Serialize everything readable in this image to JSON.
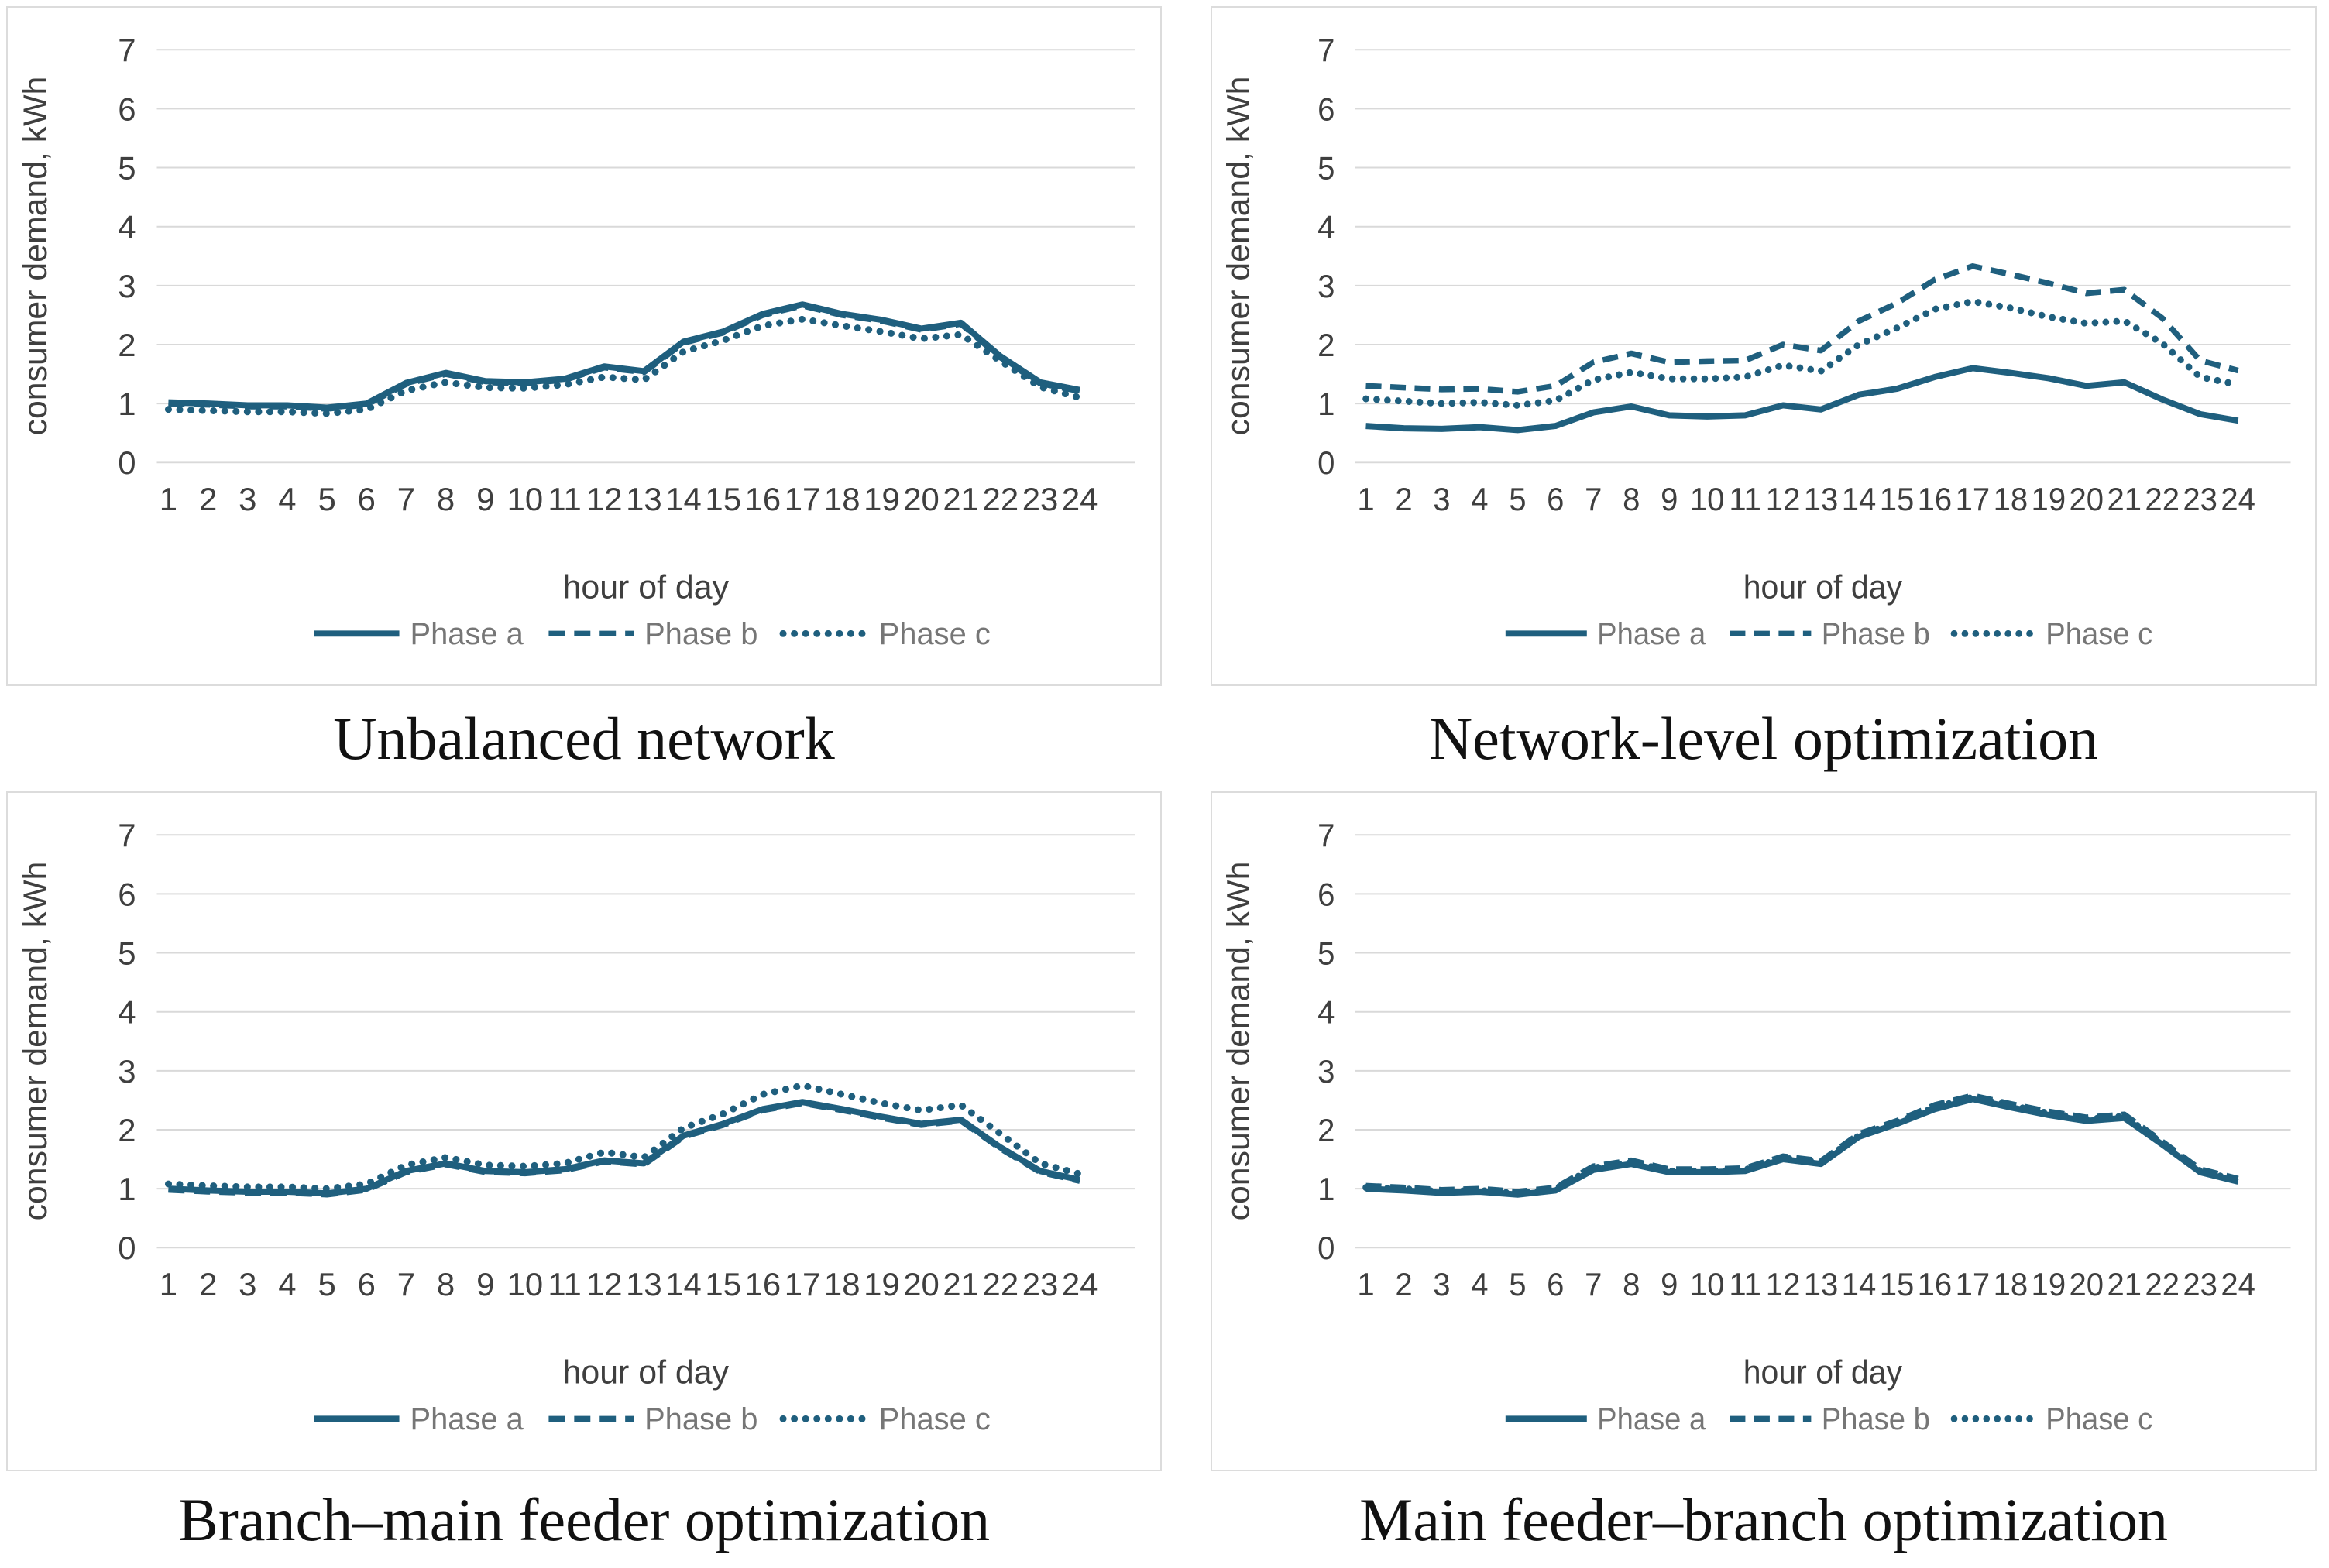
{
  "theme": {
    "line_color": "#1f5f7e",
    "grid_color": "#d9d9d9",
    "panel_border_color": "#dcdcdc",
    "axis_text_color": "#3f3f3f",
    "legend_text_color": "#767676",
    "title_color": "#111111",
    "background": "#ffffff"
  },
  "chart_data": [
    {
      "type": "line",
      "title": "Unbalanced network",
      "xlabel": "hour of day",
      "ylabel": "consumer demand, kWh",
      "x": [
        1,
        2,
        3,
        4,
        5,
        6,
        7,
        8,
        9,
        10,
        11,
        12,
        13,
        14,
        15,
        16,
        17,
        18,
        19,
        20,
        21,
        22,
        23,
        24
      ],
      "ylim": [
        0,
        7
      ],
      "yticks": [
        0,
        1,
        2,
        3,
        4,
        5,
        6,
        7
      ],
      "grid": "horizontal",
      "legend_position": "bottom",
      "series": [
        {
          "name": "Phase a",
          "style": "solid",
          "values": [
            1.02,
            1.0,
            0.97,
            0.97,
            0.93,
            1.0,
            1.35,
            1.52,
            1.38,
            1.36,
            1.42,
            1.63,
            1.55,
            2.05,
            2.22,
            2.52,
            2.68,
            2.52,
            2.42,
            2.27,
            2.37,
            1.8,
            1.36,
            1.23
          ]
        },
        {
          "name": "Phase b",
          "style": "dashed",
          "values": [
            1.0,
            0.98,
            0.95,
            0.95,
            0.91,
            0.98,
            1.33,
            1.5,
            1.36,
            1.34,
            1.4,
            1.61,
            1.53,
            2.03,
            2.2,
            2.5,
            2.66,
            2.5,
            2.4,
            2.25,
            2.35,
            1.78,
            1.34,
            1.21
          ]
        },
        {
          "name": "Phase c",
          "style": "dotted",
          "values": [
            0.9,
            0.88,
            0.86,
            0.86,
            0.83,
            0.9,
            1.22,
            1.36,
            1.27,
            1.26,
            1.32,
            1.45,
            1.4,
            1.88,
            2.07,
            2.32,
            2.43,
            2.32,
            2.22,
            2.1,
            2.17,
            1.72,
            1.28,
            1.1
          ]
        }
      ]
    },
    {
      "type": "line",
      "title": "Network-level optimization",
      "xlabel": "hour of day",
      "ylabel": "consumer demand, kWh",
      "x": [
        1,
        2,
        3,
        4,
        5,
        6,
        7,
        8,
        9,
        10,
        11,
        12,
        13,
        14,
        15,
        16,
        17,
        18,
        19,
        20,
        21,
        22,
        23,
        24
      ],
      "ylim": [
        0,
        7
      ],
      "yticks": [
        0,
        1,
        2,
        3,
        4,
        5,
        6,
        7
      ],
      "grid": "horizontal",
      "legend_position": "bottom",
      "series": [
        {
          "name": "Phase a",
          "style": "solid",
          "values": [
            0.62,
            0.58,
            0.57,
            0.6,
            0.55,
            0.62,
            0.85,
            0.95,
            0.8,
            0.78,
            0.8,
            0.97,
            0.9,
            1.15,
            1.25,
            1.45,
            1.6,
            1.52,
            1.43,
            1.3,
            1.36,
            1.07,
            0.82,
            0.71
          ]
        },
        {
          "name": "Phase b",
          "style": "dashed",
          "values": [
            1.3,
            1.27,
            1.24,
            1.25,
            1.2,
            1.3,
            1.7,
            1.85,
            1.7,
            1.72,
            1.73,
            2.0,
            1.9,
            2.4,
            2.7,
            3.1,
            3.33,
            3.19,
            3.04,
            2.87,
            2.93,
            2.45,
            1.73,
            1.56
          ]
        },
        {
          "name": "Phase c",
          "style": "dotted",
          "values": [
            1.08,
            1.04,
            1.0,
            1.02,
            0.97,
            1.05,
            1.4,
            1.53,
            1.42,
            1.42,
            1.45,
            1.65,
            1.55,
            2.0,
            2.28,
            2.6,
            2.73,
            2.62,
            2.47,
            2.36,
            2.4,
            2.02,
            1.45,
            1.32
          ]
        }
      ]
    },
    {
      "type": "line",
      "title": "Branch–main feeder optimization",
      "xlabel": "hour of day",
      "ylabel": "consumer demand, kWh",
      "x": [
        1,
        2,
        3,
        4,
        5,
        6,
        7,
        8,
        9,
        10,
        11,
        12,
        13,
        14,
        15,
        16,
        17,
        18,
        19,
        20,
        21,
        22,
        23,
        24
      ],
      "ylim": [
        0,
        7
      ],
      "yticks": [
        0,
        1,
        2,
        3,
        4,
        5,
        6,
        7
      ],
      "grid": "horizontal",
      "legend_position": "bottom",
      "series": [
        {
          "name": "Phase a",
          "style": "solid",
          "values": [
            1.0,
            0.97,
            0.95,
            0.95,
            0.92,
            1.0,
            1.3,
            1.43,
            1.3,
            1.28,
            1.33,
            1.48,
            1.43,
            1.9,
            2.1,
            2.35,
            2.47,
            2.35,
            2.22,
            2.1,
            2.17,
            1.7,
            1.3,
            1.15
          ]
        },
        {
          "name": "Phase b",
          "style": "dashed",
          "values": [
            0.98,
            0.95,
            0.93,
            0.93,
            0.9,
            0.98,
            1.28,
            1.41,
            1.28,
            1.26,
            1.31,
            1.46,
            1.41,
            1.88,
            2.08,
            2.33,
            2.45,
            2.33,
            2.2,
            2.08,
            2.15,
            1.68,
            1.28,
            1.13
          ]
        },
        {
          "name": "Phase c",
          "style": "dotted",
          "values": [
            1.08,
            1.05,
            1.03,
            1.03,
            1.0,
            1.08,
            1.4,
            1.53,
            1.4,
            1.38,
            1.43,
            1.62,
            1.53,
            2.03,
            2.27,
            2.6,
            2.75,
            2.6,
            2.45,
            2.33,
            2.42,
            1.93,
            1.43,
            1.25
          ]
        }
      ]
    },
    {
      "type": "line",
      "title": "Main feeder–branch optimization",
      "xlabel": "hour of day",
      "ylabel": "consumer demand, kWh",
      "x": [
        1,
        2,
        3,
        4,
        5,
        6,
        7,
        8,
        9,
        10,
        11,
        12,
        13,
        14,
        15,
        16,
        17,
        18,
        19,
        20,
        21,
        22,
        23,
        24
      ],
      "ylim": [
        0,
        7
      ],
      "yticks": [
        0,
        1,
        2,
        3,
        4,
        5,
        6,
        7
      ],
      "grid": "horizontal",
      "legend_position": "bottom",
      "series": [
        {
          "name": "Phase a",
          "style": "solid",
          "values": [
            1.0,
            0.97,
            0.93,
            0.95,
            0.9,
            0.97,
            1.32,
            1.42,
            1.28,
            1.28,
            1.3,
            1.5,
            1.42,
            1.88,
            2.1,
            2.35,
            2.52,
            2.38,
            2.25,
            2.15,
            2.2,
            1.75,
            1.28,
            1.12
          ]
        },
        {
          "name": "Phase b",
          "style": "dashed",
          "values": [
            1.05,
            1.02,
            0.98,
            1.0,
            0.95,
            1.02,
            1.38,
            1.48,
            1.33,
            1.33,
            1.35,
            1.55,
            1.47,
            1.93,
            2.15,
            2.42,
            2.58,
            2.44,
            2.31,
            2.21,
            2.26,
            1.8,
            1.33,
            1.17
          ]
        },
        {
          "name": "Phase c",
          "style": "dotted",
          "values": [
            1.02,
            1.0,
            0.95,
            0.97,
            0.92,
            1.0,
            1.35,
            1.45,
            1.3,
            1.3,
            1.32,
            1.52,
            1.45,
            1.9,
            2.12,
            2.38,
            2.55,
            2.41,
            2.28,
            2.18,
            2.23,
            1.77,
            1.3,
            1.14
          ]
        }
      ]
    }
  ]
}
